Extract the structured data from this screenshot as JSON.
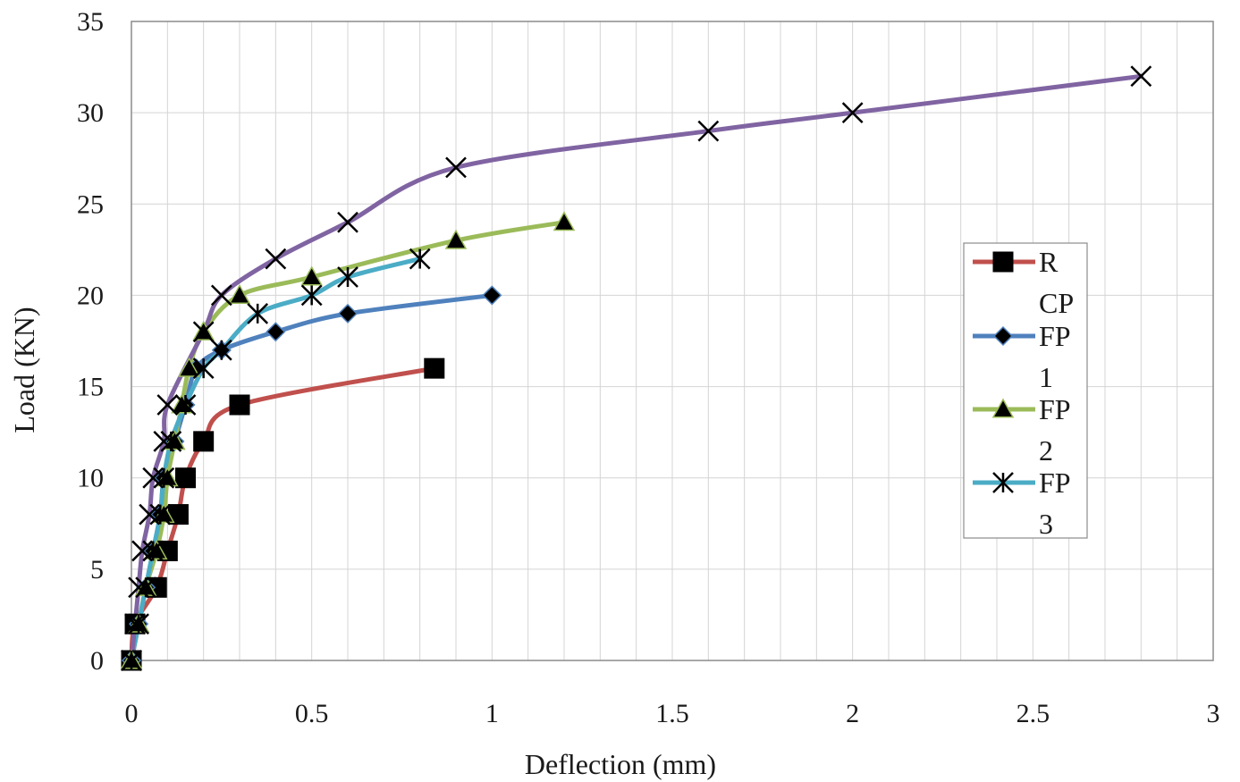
{
  "chart_data": {
    "type": "line",
    "title": "",
    "xlabel": "Deflection (mm)",
    "ylabel": "Load (KN)",
    "xlim": [
      0,
      3
    ],
    "ylim": [
      0,
      35
    ],
    "x_ticks": [
      "0",
      "0.5",
      "1",
      "1.5",
      "2",
      "2.5",
      "3"
    ],
    "y_ticks": [
      "0",
      "5",
      "10",
      "15",
      "20",
      "25",
      "30",
      "35"
    ],
    "grid": true,
    "minor_x_gridlines": true,
    "legend_position": "right",
    "legend_labels": [
      "R\nCP",
      "FP\n1",
      "FP\n2",
      "FP\n3"
    ],
    "series": [
      {
        "name": "RCP",
        "color": "#c0504d",
        "marker": "square",
        "x": [
          0,
          0.01,
          0.07,
          0.1,
          0.13,
          0.15,
          0.2,
          0.3,
          0.84
        ],
        "y": [
          0,
          2,
          4,
          6,
          8,
          10,
          12,
          14,
          16
        ]
      },
      {
        "name": "FP1",
        "color": "#4f81bd",
        "marker": "diamond",
        "x": [
          0,
          0.02,
          0.04,
          0.06,
          0.08,
          0.09,
          0.12,
          0.15,
          0.18,
          0.25,
          0.4,
          0.6,
          1.0
        ],
        "y": [
          0,
          2,
          4,
          6,
          8,
          10,
          12,
          14,
          16,
          17,
          18,
          19,
          20
        ]
      },
      {
        "name": "FP2",
        "color": "#9bbb59",
        "marker": "triangle",
        "x": [
          0,
          0.02,
          0.04,
          0.07,
          0.09,
          0.1,
          0.12,
          0.14,
          0.16,
          0.2,
          0.3,
          0.5,
          0.9,
          1.2
        ],
        "y": [
          0,
          2,
          4,
          6,
          8,
          10,
          12,
          14,
          16,
          18,
          20,
          21,
          23,
          24
        ]
      },
      {
        "name": "FP3",
        "color": "#4bacc6",
        "marker": "asterisk",
        "x": [
          0,
          0.02,
          0.04,
          0.06,
          0.08,
          0.09,
          0.11,
          0.15,
          0.2,
          0.25,
          0.35,
          0.5,
          0.6,
          0.8
        ],
        "y": [
          0,
          2,
          4,
          6,
          8,
          10,
          12,
          14,
          16,
          17,
          19,
          20,
          21,
          22
        ]
      },
      {
        "name": "",
        "color": "#8064a2",
        "marker": "x",
        "x": [
          0,
          0.01,
          0.02,
          0.03,
          0.05,
          0.06,
          0.09,
          0.1,
          0.2,
          0.25,
          0.4,
          0.6,
          0.9,
          1.6,
          2.0,
          2.8
        ],
        "y": [
          0,
          2,
          4,
          6,
          8,
          10,
          12,
          14,
          18,
          20,
          22,
          24,
          27,
          29,
          30,
          32
        ]
      }
    ]
  }
}
